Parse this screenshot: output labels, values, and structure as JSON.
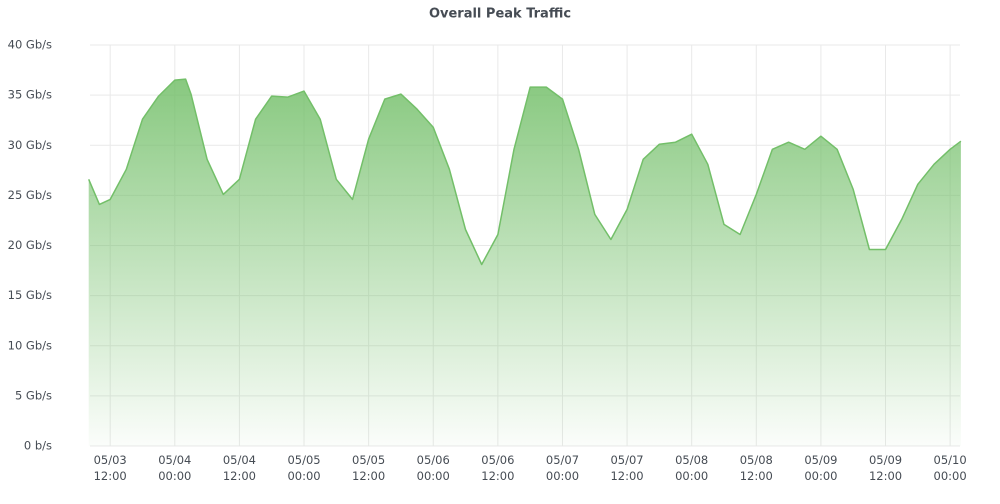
{
  "chart_data": {
    "type": "area",
    "title": "Overall Peak Traffic",
    "x": [
      "05/03 08:00",
      "05/03 10:00",
      "05/03 12:00",
      "05/03 15:00",
      "05/03 18:00",
      "05/03 21:00",
      "05/04 00:00",
      "05/04 02:00",
      "05/04 03:00",
      "05/04 06:00",
      "05/04 09:00",
      "05/04 12:00",
      "05/04 15:00",
      "05/04 18:00",
      "05/04 21:00",
      "05/05 00:00",
      "05/05 03:00",
      "05/05 06:00",
      "05/05 09:00",
      "05/05 12:00",
      "05/05 15:00",
      "05/05 18:00",
      "05/05 21:00",
      "05/06 00:00",
      "05/06 03:00",
      "05/06 06:00",
      "05/06 09:00",
      "05/06 12:00",
      "05/06 15:00",
      "05/06 18:00",
      "05/06 21:00",
      "05/07 00:00",
      "05/07 03:00",
      "05/07 06:00",
      "05/07 09:00",
      "05/07 12:00",
      "05/07 15:00",
      "05/07 18:00",
      "05/07 21:00",
      "05/08 00:00",
      "05/08 03:00",
      "05/08 06:00",
      "05/08 09:00",
      "05/08 12:00",
      "05/08 15:00",
      "05/08 18:00",
      "05/08 21:00",
      "05/09 00:00",
      "05/09 03:00",
      "05/09 06:00",
      "05/09 09:00",
      "05/09 12:00",
      "05/09 15:00",
      "05/09 18:00",
      "05/09 21:00",
      "05/10 00:00",
      "05/10 02:00"
    ],
    "values": [
      26.6,
      24.1,
      24.6,
      27.6,
      32.6,
      34.9,
      36.5,
      36.6,
      35.1,
      28.6,
      25.1,
      26.6,
      32.6,
      34.9,
      34.8,
      35.4,
      32.6,
      26.6,
      24.6,
      30.6,
      34.6,
      35.1,
      33.6,
      31.8,
      27.6,
      21.6,
      18.1,
      21.1,
      29.6,
      35.8,
      35.8,
      34.6,
      29.6,
      23.1,
      20.6,
      23.6,
      28.6,
      30.1,
      30.3,
      31.1,
      28.1,
      22.1,
      21.1,
      25.1,
      29.6,
      30.3,
      29.6,
      30.9,
      29.6,
      25.6,
      19.6,
      19.6,
      22.6,
      26.1,
      28.1,
      29.6,
      30.4
    ],
    "color": "#73bf69",
    "xlim": [
      "05/03 08:15",
      "05/10 01:50"
    ],
    "xticks": [
      "05/03 12:00",
      "05/04 00:00",
      "05/04 12:00",
      "05/05 00:00",
      "05/05 12:00",
      "05/06 00:00",
      "05/06 12:00",
      "05/07 00:00",
      "05/07 12:00",
      "05/08 00:00",
      "05/08 12:00",
      "05/09 00:00",
      "05/09 12:00",
      "05/10 00:00"
    ],
    "ylim": [
      0,
      40
    ],
    "yticks": [
      {
        "value": 0,
        "label": "0 b/s"
      },
      {
        "value": 5,
        "label": "5 Gb/s"
      },
      {
        "value": 10,
        "label": "10 Gb/s"
      },
      {
        "value": 15,
        "label": "15 Gb/s"
      },
      {
        "value": 20,
        "label": "20 Gb/s"
      },
      {
        "value": 25,
        "label": "25 Gb/s"
      },
      {
        "value": 30,
        "label": "30 Gb/s"
      },
      {
        "value": 35,
        "label": "35 Gb/s"
      },
      {
        "value": 40,
        "label": "40 Gb/s"
      }
    ],
    "grid": true
  }
}
